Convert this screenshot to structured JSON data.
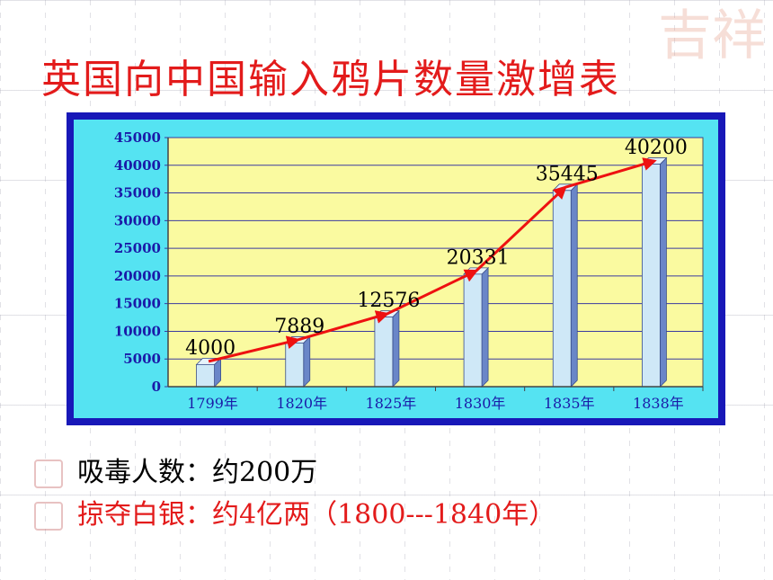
{
  "title": "英国向中国输入鸦片数量激增表",
  "chart_data": {
    "type": "bar",
    "categories": [
      "1799年",
      "1820年",
      "1825年",
      "1830年",
      "1835年",
      "1838年"
    ],
    "values": [
      4000,
      7889,
      12576,
      20331,
      35445,
      40200
    ],
    "data_labels": [
      "4000",
      "7889",
      "12576",
      "20331",
      "35445",
      "40200"
    ],
    "yticks": [
      0,
      5000,
      10000,
      15000,
      20000,
      25000,
      30000,
      35000,
      40000,
      45000
    ],
    "ylim": [
      0,
      45000
    ],
    "grid": true,
    "trend_line": true,
    "colors": {
      "plot_bg": "#fafaa0",
      "bar_face": "#cfe8f7",
      "bar_side": "#6a86c8",
      "bar_top": "#e6f3fb",
      "trend": "#ee1111",
      "axis_text": "#1a1aa8",
      "label_text": "#000000"
    }
  },
  "bullets": [
    {
      "text": "吸毒人数：约200万",
      "color": "#000000"
    },
    {
      "text": "掠夺白银：约4亿两（1800---1840年）",
      "color": "#e31b1b"
    }
  ]
}
